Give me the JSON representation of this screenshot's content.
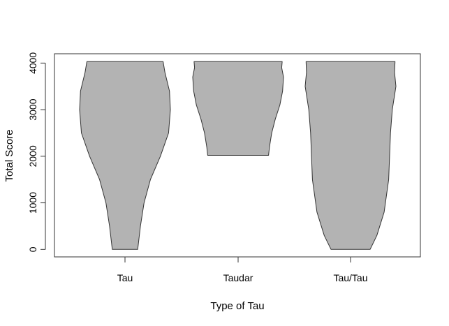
{
  "chart_data": {
    "type": "violin",
    "title": "",
    "xlabel": "Type of Tau",
    "ylabel": "Total Score",
    "ylim": [
      -160,
      4200
    ],
    "yticks": [
      0,
      1000,
      2000,
      3000,
      4000
    ],
    "categories": [
      "Tau",
      "Taudar",
      "Tau/Tau"
    ],
    "fill_color": "#b3b3b3",
    "stroke_color": "#333333",
    "violins": [
      {
        "category": "Tau",
        "min": 0,
        "max": 4030,
        "profile": [
          [
            0,
            0.28
          ],
          [
            500,
            0.34
          ],
          [
            1000,
            0.42
          ],
          [
            1500,
            0.56
          ],
          [
            2000,
            0.78
          ],
          [
            2500,
            0.96
          ],
          [
            3000,
            1.0
          ],
          [
            3400,
            0.98
          ],
          [
            3800,
            0.88
          ],
          [
            4030,
            0.84
          ]
        ]
      },
      {
        "category": "Taudar",
        "min": 2020,
        "max": 4030,
        "profile": [
          [
            2020,
            0.67
          ],
          [
            2200,
            0.69
          ],
          [
            2500,
            0.74
          ],
          [
            2800,
            0.82
          ],
          [
            3100,
            0.92
          ],
          [
            3400,
            0.98
          ],
          [
            3700,
            1.0
          ],
          [
            3900,
            0.96
          ],
          [
            4030,
            0.97
          ]
        ]
      },
      {
        "category": "Tau/Tau",
        "min": 0,
        "max": 4030,
        "profile": [
          [
            0,
            0.43
          ],
          [
            300,
            0.58
          ],
          [
            800,
            0.74
          ],
          [
            1500,
            0.84
          ],
          [
            2000,
            0.86
          ],
          [
            2500,
            0.88
          ],
          [
            3000,
            0.92
          ],
          [
            3500,
            1.0
          ],
          [
            3800,
            0.97
          ],
          [
            4030,
            0.98
          ]
        ]
      }
    ]
  }
}
